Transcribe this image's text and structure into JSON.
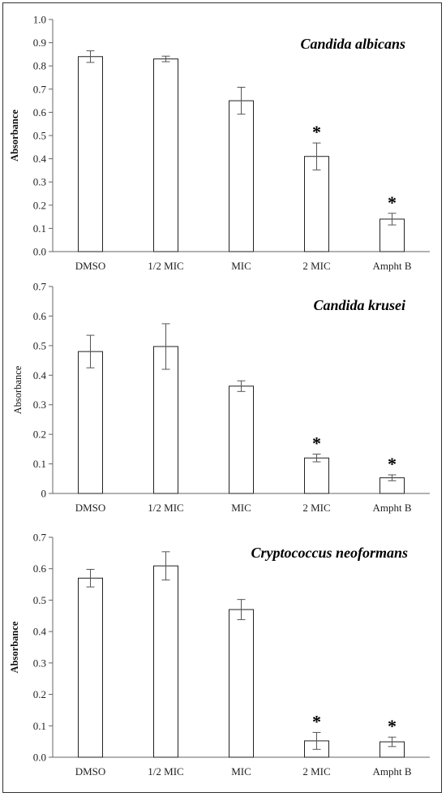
{
  "chart_data": [
    {
      "type": "bar",
      "title": "Candida albicans",
      "ylabel": "Absorbance",
      "ylabel_bold": true,
      "ylim": [
        0,
        1.0
      ],
      "ytick_step": 0.1,
      "ytick_decimals": 1,
      "categories": [
        "DMSO",
        "1/2 MIC",
        "MIC",
        "2 MIC",
        "Ampht B"
      ],
      "values": [
        0.84,
        0.83,
        0.65,
        0.41,
        0.14
      ],
      "errors": [
        0.025,
        0.012,
        0.058,
        0.058,
        0.025
      ],
      "significance": [
        "",
        "",
        "",
        "*",
        "*"
      ]
    },
    {
      "type": "bar",
      "title": "Candida krusei",
      "ylabel": "Absorbance",
      "ylabel_bold": false,
      "ylim": [
        0,
        0.7
      ],
      "ytick_step": 0.1,
      "ytick_decimals": 1,
      "zero_label": "0",
      "categories": [
        "DMSO",
        "1/2 MIC",
        "MIC",
        "2 MIC",
        "Ampht B"
      ],
      "values": [
        0.48,
        0.497,
        0.363,
        0.12,
        0.053
      ],
      "errors": [
        0.055,
        0.077,
        0.018,
        0.013,
        0.01
      ],
      "significance": [
        "",
        "",
        "",
        "*",
        "*"
      ]
    },
    {
      "type": "bar",
      "title": "Cryptococcus neoformans",
      "ylabel": "Absorbance",
      "ylabel_bold": true,
      "ylim": [
        0,
        0.7
      ],
      "ytick_step": 0.1,
      "ytick_decimals": 1,
      "categories": [
        "DMSO",
        "1/2 MIC",
        "MIC",
        "2 MIC",
        "Ampht B"
      ],
      "values": [
        0.57,
        0.609,
        0.47,
        0.052,
        0.049
      ],
      "errors": [
        0.028,
        0.045,
        0.032,
        0.027,
        0.015
      ],
      "significance": [
        "",
        "",
        "",
        "*",
        "*"
      ]
    }
  ]
}
